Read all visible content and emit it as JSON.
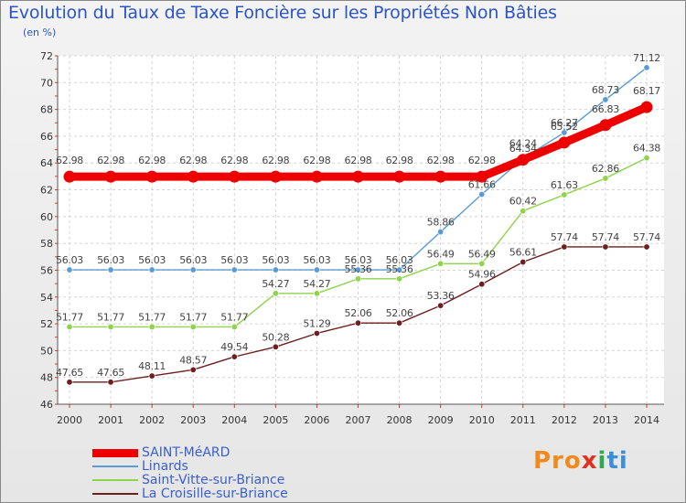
{
  "chart_data": {
    "type": "line",
    "title": "Evolution du Taux de Taxe Foncière sur les Propriétés Non Bâties",
    "ylabel": "(en %)",
    "xlabel": "",
    "categories": [
      "2000",
      "2001",
      "2002",
      "2003",
      "2004",
      "2005",
      "2006",
      "2007",
      "2008",
      "2009",
      "2010",
      "2011",
      "2012",
      "2013",
      "2014"
    ],
    "yticks": [
      46,
      48,
      50,
      52,
      54,
      56,
      58,
      60,
      62,
      64,
      66,
      68,
      70,
      72
    ],
    "ylim": [
      46,
      72
    ],
    "series": [
      {
        "name": "SAINT-MéARD",
        "color": "#ee0000",
        "thick": true,
        "values": [
          62.98,
          62.98,
          62.98,
          62.98,
          62.98,
          62.98,
          62.98,
          62.98,
          62.98,
          62.98,
          62.98,
          64.24,
          65.52,
          66.83,
          68.17
        ],
        "labels": [
          "62.98",
          "62.98",
          "62.98",
          "62.98",
          "62.98",
          "62.98",
          "62.98",
          "62.98",
          "62.98",
          "62.98",
          "62.98",
          "64.24",
          "65.52",
          "66.83",
          "68.17"
        ]
      },
      {
        "name": "Linards",
        "color": "#5b9bd5",
        "thick": false,
        "values": [
          56.03,
          56.03,
          56.03,
          56.03,
          56.03,
          56.03,
          56.03,
          56.03,
          56.03,
          58.86,
          61.66,
          64.34,
          66.27,
          68.73,
          71.12
        ],
        "labels": [
          "56.03",
          "56.03",
          "56.03",
          "56.03",
          "56.03",
          "56.03",
          "56.03",
          "56.03",
          "56.03",
          "58.86",
          "61.66",
          "64.34",
          "66.27",
          "68.73",
          "71.12"
        ]
      },
      {
        "name": "Saint-Vitte-sur-Briance",
        "color": "#8fd44a",
        "thick": false,
        "values": [
          51.77,
          51.77,
          51.77,
          51.77,
          51.77,
          54.27,
          54.27,
          55.36,
          55.36,
          56.49,
          56.49,
          60.42,
          61.63,
          62.86,
          64.38
        ],
        "labels": [
          "51.77",
          "51.77",
          "51.77",
          "51.77",
          "51.77",
          "54.27",
          "54.27",
          "55.36",
          "55.36",
          "56.49",
          "56.49",
          "60.42",
          "61.63",
          "62.86",
          "64.38"
        ]
      },
      {
        "name": "La Croisille-sur-Briance",
        "color": "#6b1f1f",
        "thick": false,
        "values": [
          47.65,
          47.65,
          48.11,
          48.57,
          49.54,
          50.28,
          51.29,
          52.06,
          52.06,
          53.36,
          54.96,
          56.61,
          57.74,
          57.74,
          57.74
        ],
        "labels": [
          "47.65",
          "47.65",
          "48.11",
          "48.57",
          "49.54",
          "50.28",
          "51.29",
          "52.06",
          "52.06",
          "53.36",
          "54.96",
          "56.61",
          "57.74",
          "57.74",
          "57.74"
        ]
      }
    ],
    "grid": true,
    "legend": "bottom-left"
  },
  "logo": {
    "p1": "Pro",
    "p2": "x",
    "p3": "i",
    "p4": "ti"
  }
}
